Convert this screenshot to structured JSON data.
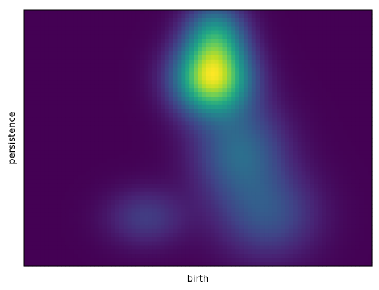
{
  "chart_data": {
    "type": "heatmap",
    "title": "",
    "xlabel": "birth",
    "ylabel": "persistence",
    "xticks": [],
    "yticks": [],
    "colormap": "viridis",
    "legend": "none",
    "grid": false,
    "x": [
      0.0,
      0.2,
      0.4,
      0.6,
      0.8,
      1.0
    ],
    "y": [
      0.0,
      0.2,
      0.4,
      0.6,
      0.8,
      1.0
    ],
    "density_components": [
      {
        "x": 0.54,
        "y": 0.73,
        "weight": 1.0,
        "sx": 0.075,
        "sy": 0.095
      },
      {
        "x": 0.55,
        "y": 0.9,
        "weight": 0.55,
        "sx": 0.06,
        "sy": 0.09
      },
      {
        "x": 0.62,
        "y": 0.45,
        "weight": 0.38,
        "sx": 0.09,
        "sy": 0.13
      },
      {
        "x": 0.7,
        "y": 0.2,
        "weight": 0.28,
        "sx": 0.1,
        "sy": 0.12
      },
      {
        "x": 0.35,
        "y": 0.19,
        "weight": 0.2,
        "sx": 0.08,
        "sy": 0.08
      }
    ],
    "value_range": [
      0.0,
      1.0
    ],
    "colors": {
      "low": "#440154",
      "high": "#fde725"
    }
  }
}
